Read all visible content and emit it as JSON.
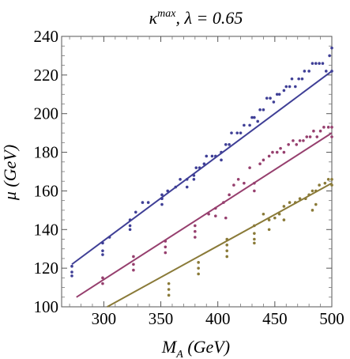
{
  "chart_data": {
    "type": "scatter",
    "title": "κ^max,  λ = 0.65",
    "title_parts": {
      "main": "κ",
      "superscript": "max",
      "rest": ",  λ = 0.65"
    },
    "xlabel": "M_A (GeV)",
    "xlabel_parts": {
      "main": "M",
      "subscript": "A",
      "rest": " (GeV)"
    },
    "ylabel": "μ (GeV)",
    "xlim": [
      263,
      500
    ],
    "ylim": [
      100,
      240
    ],
    "x_ticks": [
      300,
      350,
      400,
      450,
      500
    ],
    "y_ticks": [
      100,
      120,
      140,
      160,
      180,
      200,
      220,
      240
    ],
    "grid": false,
    "fit_lines": [
      {
        "color": "#3f3f96",
        "x": [
          272,
          500
        ],
        "y": [
          122,
          222
        ]
      },
      {
        "color": "#963f6e",
        "x": [
          276,
          500
        ],
        "y": [
          105,
          190
        ]
      },
      {
        "color": "#8a7a38",
        "x": [
          303,
          500
        ],
        "y": [
          100,
          164
        ]
      }
    ],
    "series": [
      {
        "color": "#3f3f96",
        "points": [
          [
            272,
            121
          ],
          [
            272,
            118
          ],
          [
            272,
            116
          ],
          [
            299,
            133
          ],
          [
            299,
            129
          ],
          [
            299,
            127
          ],
          [
            305,
            136
          ],
          [
            323,
            145
          ],
          [
            323,
            142
          ],
          [
            323,
            140
          ],
          [
            328,
            149
          ],
          [
            334,
            154
          ],
          [
            339,
            154
          ],
          [
            351,
            158
          ],
          [
            351,
            156
          ],
          [
            351,
            153
          ],
          [
            356,
            160
          ],
          [
            363,
            162
          ],
          [
            367,
            166
          ],
          [
            373,
            166
          ],
          [
            373,
            162
          ],
          [
            379,
            168
          ],
          [
            379,
            166
          ],
          [
            381,
            172
          ],
          [
            384,
            172
          ],
          [
            388,
            174
          ],
          [
            390,
            178
          ],
          [
            395,
            178
          ],
          [
            398,
            178
          ],
          [
            403,
            180
          ],
          [
            403,
            176
          ],
          [
            407,
            184
          ],
          [
            410,
            184
          ],
          [
            412,
            190
          ],
          [
            417,
            190
          ],
          [
            420,
            190
          ],
          [
            423,
            194
          ],
          [
            428,
            194
          ],
          [
            430,
            198
          ],
          [
            432,
            198
          ],
          [
            435,
            196
          ],
          [
            437,
            202
          ],
          [
            440,
            202
          ],
          [
            443,
            208
          ],
          [
            446,
            208
          ],
          [
            449,
            206
          ],
          [
            452,
            210
          ],
          [
            454,
            210
          ],
          [
            458,
            212
          ],
          [
            460,
            214
          ],
          [
            463,
            214
          ],
          [
            465,
            218
          ],
          [
            468,
            214
          ],
          [
            471,
            218
          ],
          [
            474,
            218
          ],
          [
            476,
            222
          ],
          [
            480,
            222
          ],
          [
            483,
            226
          ],
          [
            486,
            226
          ],
          [
            489,
            226
          ],
          [
            492,
            226
          ],
          [
            495,
            222
          ],
          [
            498,
            230
          ],
          [
            500,
            234
          ],
          [
            500,
            222
          ]
        ]
      },
      {
        "color": "#963f6e",
        "points": [
          [
            299,
            115
          ],
          [
            299,
            112
          ],
          [
            326,
            126
          ],
          [
            326,
            122
          ],
          [
            326,
            119
          ],
          [
            354,
            134
          ],
          [
            354,
            131
          ],
          [
            354,
            128
          ],
          [
            380,
            142
          ],
          [
            380,
            139
          ],
          [
            380,
            136
          ],
          [
            392,
            148
          ],
          [
            398,
            151
          ],
          [
            398,
            147
          ],
          [
            405,
            154
          ],
          [
            407,
            146
          ],
          [
            410,
            158
          ],
          [
            414,
            163
          ],
          [
            418,
            166
          ],
          [
            423,
            164
          ],
          [
            428,
            172
          ],
          [
            432,
            164
          ],
          [
            432,
            160
          ],
          [
            437,
            174
          ],
          [
            440,
            176
          ],
          [
            445,
            178
          ],
          [
            448,
            180
          ],
          [
            452,
            180
          ],
          [
            455,
            182
          ],
          [
            458,
            180
          ],
          [
            462,
            184
          ],
          [
            466,
            186
          ],
          [
            469,
            184
          ],
          [
            472,
            186
          ],
          [
            475,
            186
          ],
          [
            478,
            188
          ],
          [
            481,
            188
          ],
          [
            484,
            191
          ],
          [
            487,
            188
          ],
          [
            490,
            191
          ],
          [
            493,
            193
          ],
          [
            497,
            193
          ],
          [
            500,
            193
          ],
          [
            500,
            188
          ]
        ]
      },
      {
        "color": "#8a7a38",
        "points": [
          [
            357,
            112
          ],
          [
            357,
            109
          ],
          [
            357,
            106
          ],
          [
            383,
            123
          ],
          [
            383,
            120
          ],
          [
            383,
            117
          ],
          [
            408,
            135
          ],
          [
            408,
            132
          ],
          [
            408,
            129
          ],
          [
            408,
            126
          ],
          [
            432,
            142
          ],
          [
            432,
            138
          ],
          [
            432,
            135
          ],
          [
            432,
            133
          ],
          [
            440,
            148
          ],
          [
            445,
            145
          ],
          [
            450,
            146
          ],
          [
            454,
            148
          ],
          [
            458,
            152
          ],
          [
            463,
            154
          ],
          [
            468,
            154
          ],
          [
            472,
            156
          ],
          [
            477,
            156
          ],
          [
            480,
            158
          ],
          [
            483,
            160
          ],
          [
            486,
            160
          ],
          [
            489,
            163
          ],
          [
            494,
            164
          ],
          [
            497,
            166
          ],
          [
            500,
            166
          ],
          [
            500,
            163
          ],
          [
            486,
            153
          ],
          [
            483,
            150
          ],
          [
            458,
            145
          ],
          [
            445,
            140
          ]
        ]
      }
    ]
  }
}
